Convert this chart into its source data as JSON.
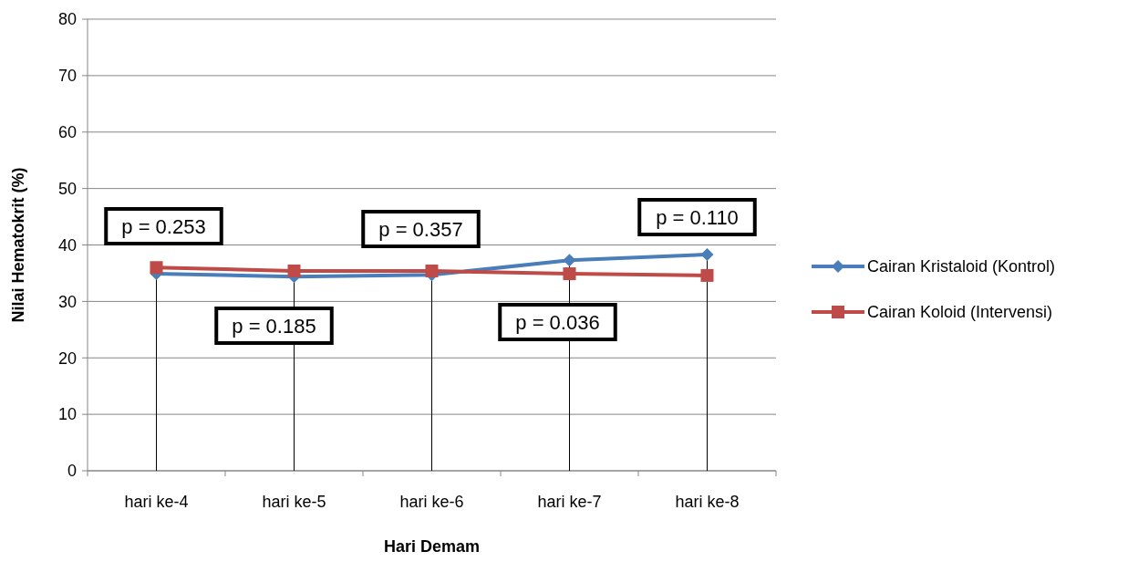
{
  "chart_data": {
    "type": "line",
    "xlabel": "Hari Demam",
    "ylabel": "Nilai Hematokrit (%)",
    "categories": [
      "hari ke-4",
      "hari ke-5",
      "hari ke-6",
      "hari ke-7",
      "hari ke-8"
    ],
    "series": [
      {
        "name": "Cairan Kristaloid (Kontrol)",
        "color": "#4a7ebb",
        "marker": "diamond",
        "values": [
          34.9,
          34.4,
          34.7,
          37.3,
          38.3
        ]
      },
      {
        "name": "Cairan Koloid (Intervensi)",
        "color": "#be4b48",
        "marker": "square",
        "values": [
          36.0,
          35.4,
          35.4,
          34.9,
          34.6
        ]
      }
    ],
    "ylim": [
      0,
      80
    ],
    "yticks": [
      0,
      10,
      20,
      30,
      40,
      50,
      60,
      70,
      80
    ],
    "grid": "y",
    "legend": "right",
    "ref_lines": [
      {
        "axis": "x",
        "value": "hari ke-4",
        "color": "#000000"
      },
      {
        "axis": "x",
        "value": "hari ke-5",
        "color": "#000000"
      },
      {
        "axis": "x",
        "value": "hari ke-6",
        "color": "#000000"
      },
      {
        "axis": "x",
        "value": "hari ke-7",
        "color": "#000000"
      },
      {
        "axis": "x",
        "value": "hari ke-8",
        "color": "#000000"
      }
    ],
    "annotations": [
      "p = 0.253",
      "p = 0.185",
      "p = 0.357",
      "p = 0.036",
      "p = 0.110"
    ]
  }
}
